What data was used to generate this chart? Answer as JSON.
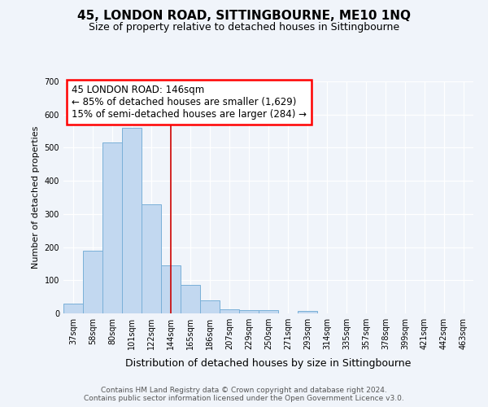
{
  "title": "45, LONDON ROAD, SITTINGBOURNE, ME10 1NQ",
  "subtitle": "Size of property relative to detached houses in Sittingbourne",
  "xlabel": "Distribution of detached houses by size in Sittingbourne",
  "ylabel": "Number of detached properties",
  "categories": [
    "37sqm",
    "58sqm",
    "80sqm",
    "101sqm",
    "122sqm",
    "144sqm",
    "165sqm",
    "186sqm",
    "207sqm",
    "229sqm",
    "250sqm",
    "271sqm",
    "293sqm",
    "314sqm",
    "335sqm",
    "357sqm",
    "378sqm",
    "399sqm",
    "421sqm",
    "442sqm",
    "463sqm"
  ],
  "values": [
    30,
    190,
    515,
    560,
    330,
    145,
    85,
    40,
    13,
    10,
    10,
    0,
    8,
    0,
    0,
    0,
    0,
    0,
    0,
    0,
    0
  ],
  "bar_color": "#c2d8f0",
  "bar_edge_color": "#7ab0d8",
  "vline_index": 5,
  "vline_color": "#cc0000",
  "ylim": [
    0,
    700
  ],
  "yticks": [
    0,
    100,
    200,
    300,
    400,
    500,
    600,
    700
  ],
  "annotation_line1": "45 LONDON ROAD: 146sqm",
  "annotation_line2": "← 85% of detached houses are smaller (1,629)",
  "annotation_line3": "15% of semi-detached houses are larger (284) →",
  "bg_color": "#f0f4fa",
  "plot_bg_color": "#f0f4fa",
  "grid_color": "#ffffff",
  "footer_text": "Contains HM Land Registry data © Crown copyright and database right 2024.\nContains public sector information licensed under the Open Government Licence v3.0.",
  "title_fontsize": 11,
  "subtitle_fontsize": 9,
  "xlabel_fontsize": 9,
  "ylabel_fontsize": 8,
  "tick_fontsize": 7,
  "ann_fontsize": 8.5,
  "footer_fontsize": 6.5
}
